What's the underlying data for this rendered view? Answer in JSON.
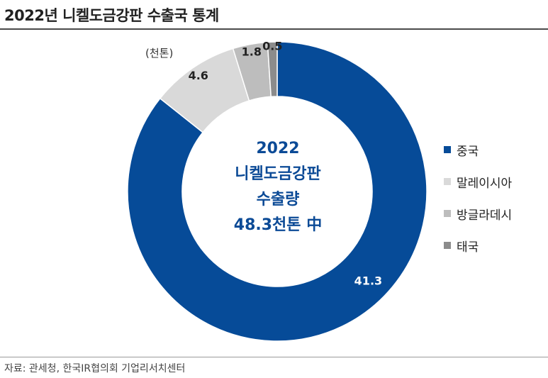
{
  "title": "2022년 니켈도금강판 수출국 통계",
  "unit_label": "(천톤)",
  "source": "자료: 관세청, 한국IR협의회 기업리서치센터",
  "center_text": [
    "2022",
    "니켈도금강판",
    "수출량",
    "48.3천톤 中"
  ],
  "legend": [
    {
      "label": "중국",
      "color": "#064b98"
    },
    {
      "label": "말레이시아",
      "color": "#d9d9d9"
    },
    {
      "label": "방글라데시",
      "color": "#bdbdbd"
    },
    {
      "label": "태국",
      "color": "#8c8c8c"
    }
  ],
  "chart_data": {
    "type": "pie",
    "donut": true,
    "categories": [
      "중국",
      "말레이시아",
      "방글라데시",
      "태국"
    ],
    "values": [
      41.3,
      4.6,
      1.8,
      0.5
    ],
    "value_labels": [
      "41.3",
      "4.6",
      "1.8",
      "0.5"
    ],
    "colors": [
      "#064b98",
      "#d9d9d9",
      "#bdbdbd",
      "#8c8c8c"
    ],
    "start": "12 o'clock",
    "direction": "clockwise",
    "legend_position": "right"
  }
}
